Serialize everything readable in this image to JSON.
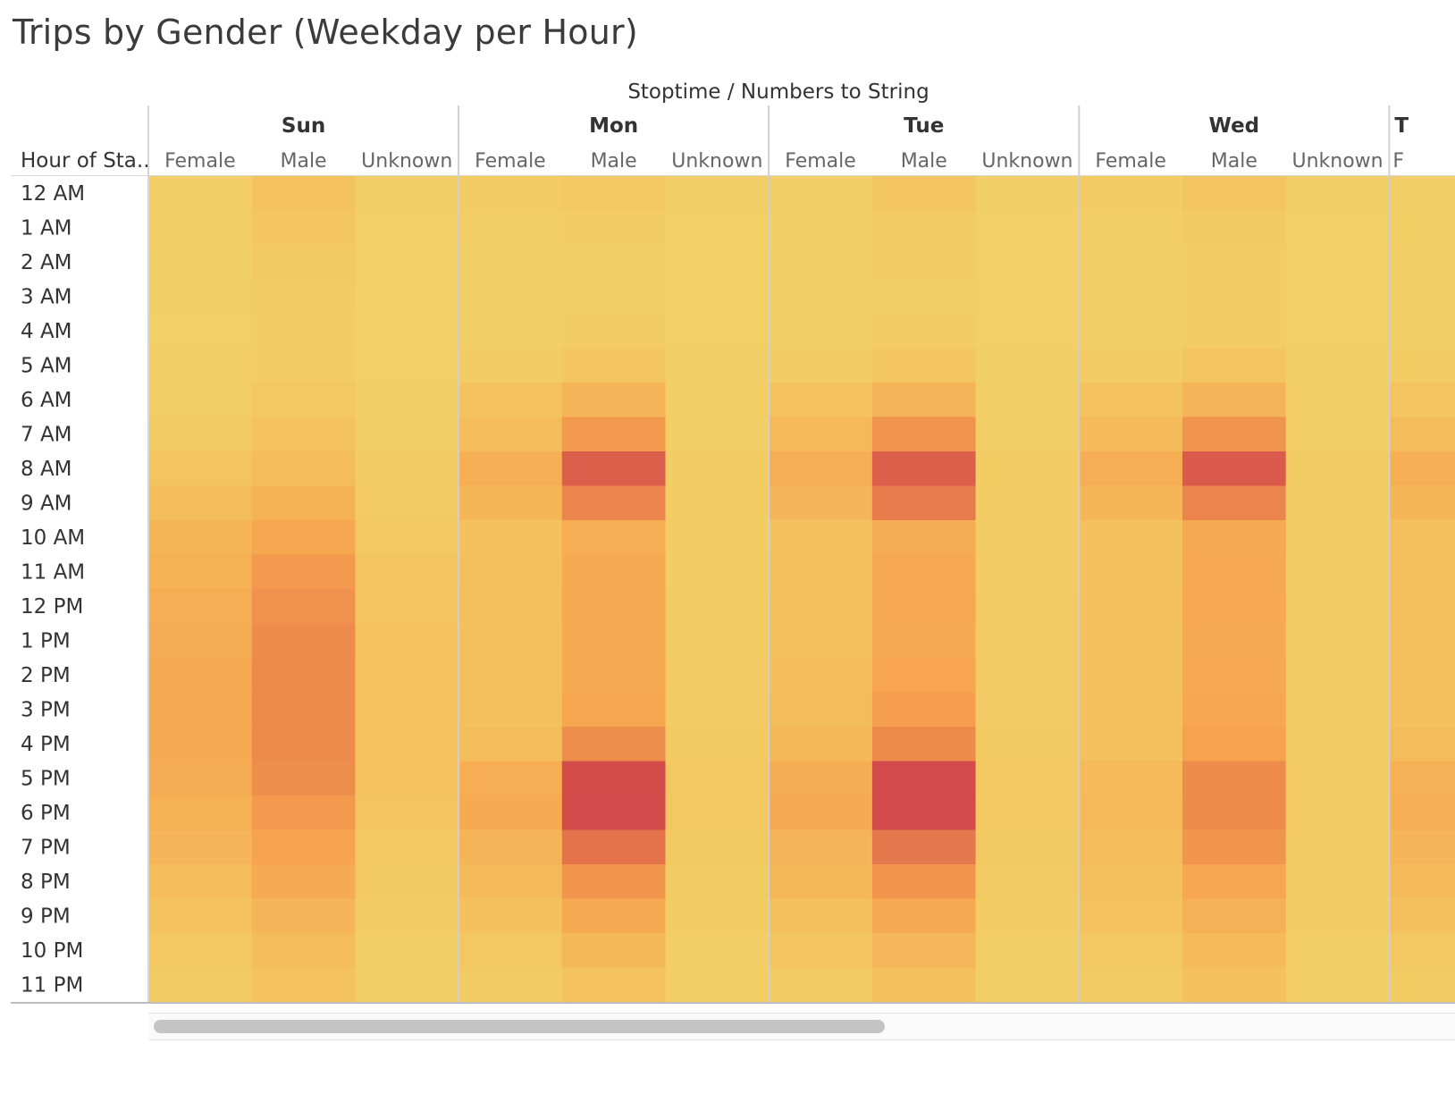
{
  "title": "Trips by Gender (Weekday per Hour)",
  "chart_data": {
    "type": "heatmap",
    "title": "Trips by Gender (Weekday per Hour)",
    "column_header": "Stoptime / Numbers to String",
    "row_header": "Hour of Sta..",
    "days": [
      "Sun",
      "Mon",
      "Tue",
      "Wed",
      "T"
    ],
    "genders": [
      "Female",
      "Male",
      "Unknown"
    ],
    "partial_column_label": "F",
    "hours": [
      "12 AM",
      "1 AM",
      "2 AM",
      "3 AM",
      "4 AM",
      "5 AM",
      "6 AM",
      "7 AM",
      "8 AM",
      "9 AM",
      "10 AM",
      "11 AM",
      "12 PM",
      "1 PM",
      "2 PM",
      "3 PM",
      "4 PM",
      "5 PM",
      "6 PM",
      "7 PM",
      "8 PM",
      "9 PM",
      "10 PM",
      "11 PM"
    ],
    "intensity_scale": "relative trip count, 0 = lowest (yellow) to 1 = highest (red)",
    "color_range": [
      "#f2d267",
      "#f7a44e",
      "#d0424a"
    ],
    "values": {
      "Sun": {
        "Female": [
          0.05,
          0.04,
          0.03,
          0.03,
          0.02,
          0.04,
          0.05,
          0.09,
          0.15,
          0.23,
          0.32,
          0.36,
          0.39,
          0.41,
          0.42,
          0.42,
          0.42,
          0.41,
          0.36,
          0.31,
          0.24,
          0.17,
          0.12,
          0.08
        ],
        "Male": [
          0.17,
          0.13,
          0.1,
          0.08,
          0.07,
          0.07,
          0.11,
          0.16,
          0.23,
          0.34,
          0.47,
          0.55,
          0.59,
          0.62,
          0.63,
          0.63,
          0.63,
          0.61,
          0.55,
          0.5,
          0.42,
          0.31,
          0.24,
          0.16
        ],
        "Unknown": [
          0.03,
          0.02,
          0.02,
          0.02,
          0.02,
          0.02,
          0.03,
          0.04,
          0.06,
          0.09,
          0.12,
          0.14,
          0.15,
          0.17,
          0.17,
          0.17,
          0.17,
          0.16,
          0.14,
          0.12,
          0.1,
          0.07,
          0.05,
          0.04
        ]
      },
      "Mon": {
        "Female": [
          0.06,
          0.04,
          0.03,
          0.03,
          0.03,
          0.07,
          0.16,
          0.24,
          0.38,
          0.3,
          0.18,
          0.2,
          0.21,
          0.2,
          0.2,
          0.2,
          0.23,
          0.4,
          0.42,
          0.33,
          0.26,
          0.19,
          0.12,
          0.08
        ],
        "Male": [
          0.11,
          0.07,
          0.05,
          0.05,
          0.06,
          0.13,
          0.31,
          0.55,
          0.85,
          0.66,
          0.4,
          0.43,
          0.44,
          0.43,
          0.43,
          0.47,
          0.61,
          0.95,
          0.96,
          0.75,
          0.57,
          0.42,
          0.28,
          0.16
        ],
        "Unknown": [
          0.03,
          0.02,
          0.02,
          0.02,
          0.02,
          0.03,
          0.04,
          0.05,
          0.07,
          0.07,
          0.07,
          0.07,
          0.08,
          0.08,
          0.09,
          0.09,
          0.1,
          0.12,
          0.12,
          0.1,
          0.08,
          0.06,
          0.05,
          0.04
        ]
      },
      "Tue": {
        "Female": [
          0.05,
          0.04,
          0.03,
          0.03,
          0.03,
          0.07,
          0.16,
          0.27,
          0.4,
          0.31,
          0.18,
          0.21,
          0.21,
          0.21,
          0.22,
          0.23,
          0.28,
          0.41,
          0.43,
          0.33,
          0.28,
          0.2,
          0.13,
          0.08
        ],
        "Male": [
          0.13,
          0.09,
          0.06,
          0.05,
          0.06,
          0.13,
          0.33,
          0.58,
          0.85,
          0.71,
          0.41,
          0.45,
          0.45,
          0.44,
          0.48,
          0.53,
          0.63,
          0.96,
          0.96,
          0.73,
          0.57,
          0.43,
          0.29,
          0.18
        ],
        "Unknown": [
          0.03,
          0.02,
          0.02,
          0.02,
          0.02,
          0.03,
          0.04,
          0.05,
          0.07,
          0.07,
          0.07,
          0.07,
          0.08,
          0.08,
          0.09,
          0.09,
          0.1,
          0.12,
          0.12,
          0.1,
          0.08,
          0.06,
          0.05,
          0.04
        ]
      },
      "Wed": {
        "Female": [
          0.06,
          0.04,
          0.03,
          0.03,
          0.03,
          0.07,
          0.16,
          0.26,
          0.4,
          0.3,
          0.18,
          0.18,
          0.19,
          0.19,
          0.19,
          0.19,
          0.19,
          0.26,
          0.27,
          0.24,
          0.2,
          0.17,
          0.12,
          0.08
        ],
        "Male": [
          0.14,
          0.1,
          0.07,
          0.06,
          0.07,
          0.14,
          0.33,
          0.58,
          0.87,
          0.66,
          0.43,
          0.45,
          0.46,
          0.44,
          0.45,
          0.47,
          0.51,
          0.62,
          0.62,
          0.57,
          0.47,
          0.37,
          0.26,
          0.18
        ],
        "Unknown": [
          0.03,
          0.02,
          0.02,
          0.02,
          0.02,
          0.03,
          0.04,
          0.05,
          0.06,
          0.06,
          0.07,
          0.07,
          0.07,
          0.08,
          0.08,
          0.08,
          0.08,
          0.09,
          0.09,
          0.08,
          0.07,
          0.06,
          0.05,
          0.04
        ]
      },
      "T": {
        "Female": [
          0.05,
          0.04,
          0.03,
          0.03,
          0.03,
          0.07,
          0.15,
          0.24,
          0.38,
          0.3,
          0.18,
          0.19,
          0.19,
          0.19,
          0.2,
          0.21,
          0.24,
          0.37,
          0.39,
          0.31,
          0.25,
          0.18,
          0.12,
          0.08
        ]
      }
    }
  }
}
